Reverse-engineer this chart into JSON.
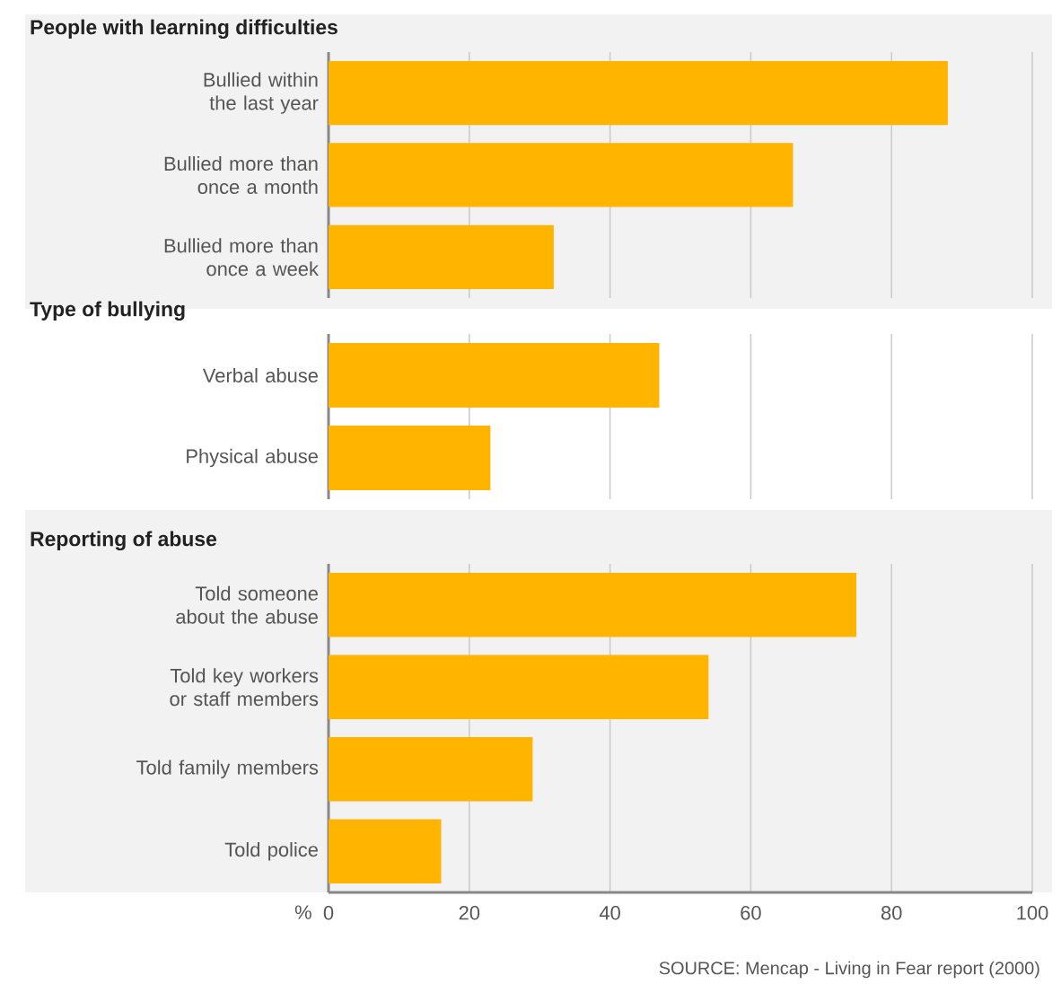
{
  "chart_data": [
    {
      "type": "bar",
      "orientation": "horizontal",
      "title": "People with learning difficulties",
      "categories": [
        "Bullied within the last year",
        "Bullied more than once a month",
        "Bullied more than once a week"
      ],
      "values": [
        88,
        66,
        32
      ],
      "color": "#ffb400",
      "xlim": [
        0,
        100
      ],
      "xticks": [
        0,
        20,
        40,
        60,
        80,
        100
      ],
      "grid": "x",
      "tick_labels": "y"
    },
    {
      "type": "bar",
      "orientation": "horizontal",
      "title": "Type of bullying",
      "categories": [
        "Verbal abuse",
        "Physical abuse"
      ],
      "values": [
        47,
        23
      ],
      "color": "#ffb400",
      "xlim": [
        0,
        100
      ],
      "xticks": [
        0,
        20,
        40,
        60,
        80,
        100
      ],
      "grid": "x",
      "tick_labels": "y"
    },
    {
      "type": "bar",
      "orientation": "horizontal",
      "title": "Reporting of abuse",
      "categories": [
        "Told someone about the abuse",
        "Told key workers or staff members",
        "Told family members",
        "Told police"
      ],
      "values": [
        75,
        54,
        29,
        16
      ],
      "color": "#ffb400",
      "xlim": [
        0,
        100
      ],
      "xticks": [
        0,
        20,
        40,
        60,
        80,
        100
      ],
      "grid": "x",
      "xlabel": "%",
      "annotations": [
        "SOURCE: Mencap - Living in Fear report (2000)"
      ]
    }
  ]
}
